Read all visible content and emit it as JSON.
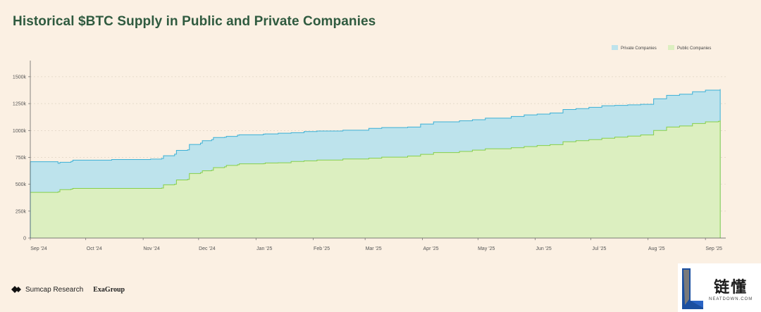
{
  "title": "Historical $BTC Supply in Public and Private Companies",
  "colors": {
    "background": "#fbf0e3",
    "private_fill": "#bde3ec",
    "private_line": "#3bb0d6",
    "public_fill": "#dcefc0",
    "public_line": "#86cf4a",
    "axis": "#555555"
  },
  "chart_data": {
    "type": "area",
    "stacked": true,
    "title": "Historical $BTC Supply in Public and Private Companies",
    "ylim": [
      0,
      1650000
    ],
    "yticks": [
      0,
      250000,
      500000,
      750000,
      1000000,
      1250000,
      1500000
    ],
    "ytick_labels": [
      "0",
      "250k",
      "500k",
      "750k",
      "1000k",
      "1250k",
      "1500k"
    ],
    "xlim": [
      "2024-09-01",
      "2025-09-12"
    ],
    "xticks": [
      {
        "date": "2024-09-01",
        "label": "Sep '24"
      },
      {
        "date": "2024-10-01",
        "label": "Oct '24"
      },
      {
        "date": "2024-11-01",
        "label": "Nov '24"
      },
      {
        "date": "2024-12-01",
        "label": "Dec '24"
      },
      {
        "date": "2025-01-01",
        "label": "Jan '25"
      },
      {
        "date": "2025-02-01",
        "label": "Feb '25"
      },
      {
        "date": "2025-03-01",
        "label": "Mar '25"
      },
      {
        "date": "2025-04-01",
        "label": "Apr '25"
      },
      {
        "date": "2025-05-01",
        "label": "May '25"
      },
      {
        "date": "2025-06-01",
        "label": "Jun '25"
      },
      {
        "date": "2025-07-01",
        "label": "Jul '25"
      },
      {
        "date": "2025-08-01",
        "label": "Aug '25"
      },
      {
        "date": "2025-09-01",
        "label": "Sep '25"
      }
    ],
    "legend_position": "top-right",
    "grid": "horizontal-dashed",
    "series": [
      {
        "name": "Public Companies",
        "color": "#86cf4a",
        "points": [
          [
            "2024-09-01",
            425000
          ],
          [
            "2024-09-16",
            430000
          ],
          [
            "2024-09-17",
            450000
          ],
          [
            "2024-09-23",
            455000
          ],
          [
            "2024-09-24",
            462000
          ],
          [
            "2024-10-15",
            462000
          ],
          [
            "2024-11-05",
            462000
          ],
          [
            "2024-11-11",
            465000
          ],
          [
            "2024-11-12",
            495000
          ],
          [
            "2024-11-18",
            500000
          ],
          [
            "2024-11-19",
            540000
          ],
          [
            "2024-11-25",
            545000
          ],
          [
            "2024-11-26",
            600000
          ],
          [
            "2024-12-02",
            608000
          ],
          [
            "2024-12-03",
            625000
          ],
          [
            "2024-12-08",
            630000
          ],
          [
            "2024-12-09",
            655000
          ],
          [
            "2024-12-15",
            662000
          ],
          [
            "2024-12-16",
            675000
          ],
          [
            "2024-12-22",
            682000
          ],
          [
            "2024-12-23",
            690000
          ],
          [
            "2025-01-05",
            692000
          ],
          [
            "2025-01-06",
            698000
          ],
          [
            "2025-01-13",
            700000
          ],
          [
            "2025-01-20",
            712000
          ],
          [
            "2025-01-27",
            718000
          ],
          [
            "2025-02-03",
            725000
          ],
          [
            "2025-02-17",
            735000
          ],
          [
            "2025-03-03",
            742000
          ],
          [
            "2025-03-10",
            752000
          ],
          [
            "2025-03-24",
            762000
          ],
          [
            "2025-03-31",
            778000
          ],
          [
            "2025-04-07",
            795000
          ],
          [
            "2025-04-21",
            805000
          ],
          [
            "2025-04-28",
            818000
          ],
          [
            "2025-05-05",
            830000
          ],
          [
            "2025-05-19",
            840000
          ],
          [
            "2025-05-26",
            850000
          ],
          [
            "2025-06-02",
            860000
          ],
          [
            "2025-06-09",
            868000
          ],
          [
            "2025-06-16",
            895000
          ],
          [
            "2025-06-23",
            905000
          ],
          [
            "2025-06-30",
            915000
          ],
          [
            "2025-07-07",
            928000
          ],
          [
            "2025-07-14",
            938000
          ],
          [
            "2025-07-21",
            948000
          ],
          [
            "2025-07-28",
            958000
          ],
          [
            "2025-08-04",
            1000000
          ],
          [
            "2025-08-11",
            1032000
          ],
          [
            "2025-08-18",
            1042000
          ],
          [
            "2025-08-25",
            1065000
          ],
          [
            "2025-09-01",
            1080000
          ],
          [
            "2025-09-08",
            1085000
          ],
          [
            "2025-09-09",
            1095000
          ]
        ]
      },
      {
        "name": "Private Companies",
        "color": "#3bb0d6",
        "points": [
          [
            "2024-09-01",
            285000
          ],
          [
            "2024-09-16",
            265000
          ],
          [
            "2024-09-17",
            255000
          ],
          [
            "2024-09-23",
            258000
          ],
          [
            "2024-09-24",
            262000
          ],
          [
            "2024-10-15",
            268000
          ],
          [
            "2024-11-05",
            272000
          ],
          [
            "2024-11-11",
            275000
          ],
          [
            "2024-11-12",
            270000
          ],
          [
            "2024-11-18",
            280000
          ],
          [
            "2024-11-19",
            275000
          ],
          [
            "2024-11-25",
            275000
          ],
          [
            "2024-11-26",
            270000
          ],
          [
            "2024-12-02",
            275000
          ],
          [
            "2024-12-03",
            280000
          ],
          [
            "2024-12-08",
            285000
          ],
          [
            "2024-12-09",
            280000
          ],
          [
            "2024-12-15",
            275000
          ],
          [
            "2024-12-16",
            270000
          ],
          [
            "2024-12-22",
            275000
          ],
          [
            "2024-12-23",
            270000
          ],
          [
            "2025-01-05",
            275000
          ],
          [
            "2025-01-06",
            270000
          ],
          [
            "2025-01-13",
            275000
          ],
          [
            "2025-01-20",
            268000
          ],
          [
            "2025-01-27",
            272000
          ],
          [
            "2025-02-03",
            270000
          ],
          [
            "2025-02-17",
            268000
          ],
          [
            "2025-03-03",
            278000
          ],
          [
            "2025-03-10",
            275000
          ],
          [
            "2025-03-24",
            270000
          ],
          [
            "2025-03-31",
            282000
          ],
          [
            "2025-04-07",
            285000
          ],
          [
            "2025-04-21",
            285000
          ],
          [
            "2025-04-28",
            282000
          ],
          [
            "2025-05-05",
            285000
          ],
          [
            "2025-05-19",
            290000
          ],
          [
            "2025-05-26",
            295000
          ],
          [
            "2025-06-02",
            292000
          ],
          [
            "2025-06-09",
            295000
          ],
          [
            "2025-06-16",
            300000
          ],
          [
            "2025-06-23",
            298000
          ],
          [
            "2025-06-30",
            300000
          ],
          [
            "2025-07-07",
            302000
          ],
          [
            "2025-07-14",
            295000
          ],
          [
            "2025-07-21",
            290000
          ],
          [
            "2025-07-28",
            285000
          ],
          [
            "2025-08-04",
            295000
          ],
          [
            "2025-08-11",
            295000
          ],
          [
            "2025-08-18",
            295000
          ],
          [
            "2025-08-25",
            295000
          ],
          [
            "2025-09-01",
            295000
          ],
          [
            "2025-09-08",
            290000
          ],
          [
            "2025-09-09",
            290000
          ]
        ]
      }
    ]
  },
  "legend": {
    "private": "Private Companies",
    "public": "Public Companies"
  },
  "footer": {
    "brand1": "Sumcap Research",
    "brand2": "ExaGroup"
  },
  "watermark": {
    "cn": "链懂",
    "url": "NEATDOWN.COM"
  }
}
